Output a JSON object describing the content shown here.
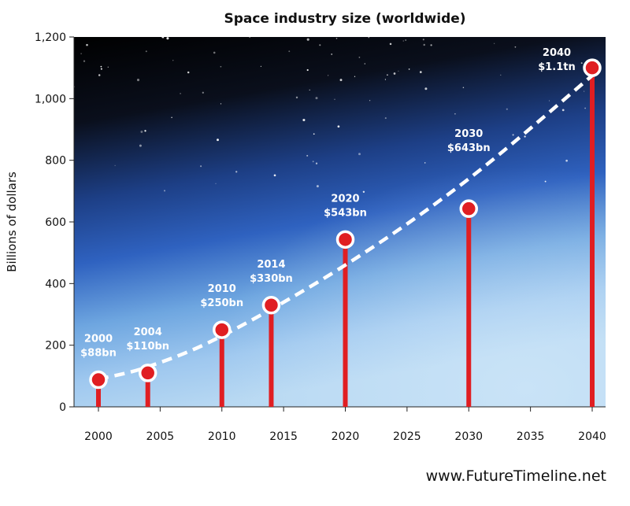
{
  "chart_data": {
    "type": "line",
    "title": "Space industry size (worldwide)",
    "ylabel": "Billions of dollars",
    "xlabel": "",
    "x_ticks": [
      "2000",
      "2005",
      "2010",
      "2015",
      "2020",
      "2025",
      "2030",
      "2035",
      "2040"
    ],
    "y_ticks": [
      "0",
      "200",
      "400",
      "600",
      "800",
      "1,000",
      "1,200"
    ],
    "xlim": [
      1998,
      2041
    ],
    "ylim": [
      0,
      1200
    ],
    "grid": false,
    "legend": "none",
    "points": [
      {
        "x": 2000,
        "y": 88,
        "year_label": "2000",
        "value_label": "$88bn"
      },
      {
        "x": 2004,
        "y": 110,
        "year_label": "2004",
        "value_label": "$110bn"
      },
      {
        "x": 2010,
        "y": 250,
        "year_label": "2010",
        "value_label": "$250bn"
      },
      {
        "x": 2014,
        "y": 330,
        "year_label": "2014",
        "value_label": "$330bn"
      },
      {
        "x": 2020,
        "y": 543,
        "year_label": "2020",
        "value_label": "$543bn"
      },
      {
        "x": 2030,
        "y": 643,
        "year_label": "2030",
        "value_label": "$643bn"
      },
      {
        "x": 2040,
        "y": 1100,
        "year_label": "2040",
        "value_label": "$1.1tn"
      }
    ],
    "trend_points": [
      {
        "x": 2000,
        "y": 90
      },
      {
        "x": 2004,
        "y": 130
      },
      {
        "x": 2010,
        "y": 230
      },
      {
        "x": 2020,
        "y": 460
      },
      {
        "x": 2030,
        "y": 740
      },
      {
        "x": 2040,
        "y": 1075
      }
    ],
    "colors": {
      "stem": "#e01e22",
      "marker_fill": "#e01e22",
      "marker_ring": "#ffffff",
      "trend": "#ffffff",
      "sky_top": "#050608",
      "sky_mid": "#2a5fb8",
      "sky_bottom": "#a9cff0"
    }
  },
  "footer": {
    "source": "www.FutureTimeline.net"
  }
}
